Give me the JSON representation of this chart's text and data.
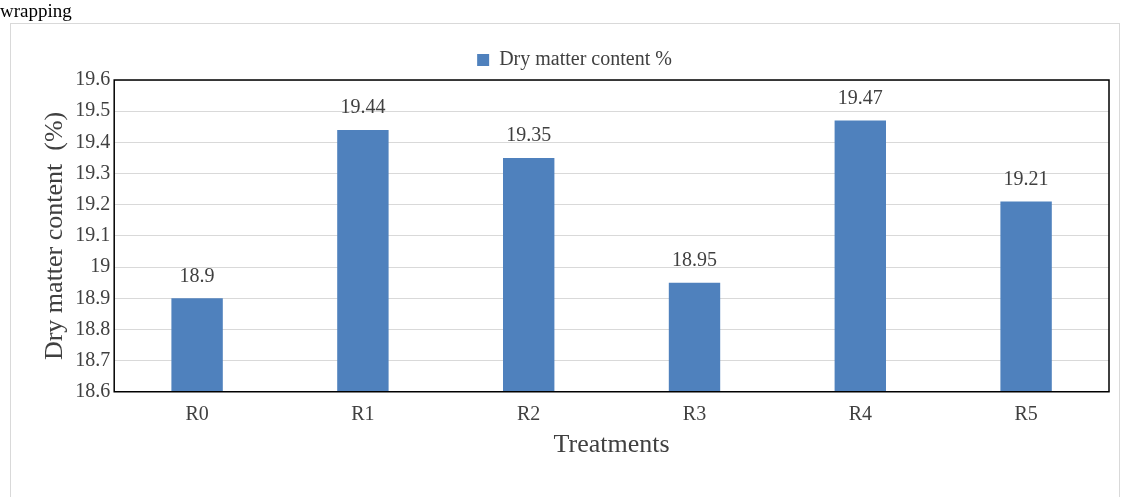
{
  "chart_data": {
    "type": "bar",
    "annotations": [
      "wrapping"
    ],
    "xlabel": "Treatments",
    "ylabel": "Dry matter content  (%)",
    "categories": [
      "R0",
      "R1",
      "R2",
      "R3",
      "R4",
      "R5"
    ],
    "series": [
      {
        "name": "Dry matter content %",
        "color": "#4f81bd",
        "values": [
          18.9,
          19.44,
          19.35,
          18.95,
          19.47,
          19.21
        ]
      }
    ],
    "ylim": [
      18.6,
      19.6
    ],
    "yticks": [
      18.6,
      18.7,
      18.8,
      18.9,
      19,
      19.1,
      19.2,
      19.3,
      19.4,
      19.5,
      19.6
    ],
    "grid": "y",
    "legend": "top",
    "data_labels": true
  }
}
